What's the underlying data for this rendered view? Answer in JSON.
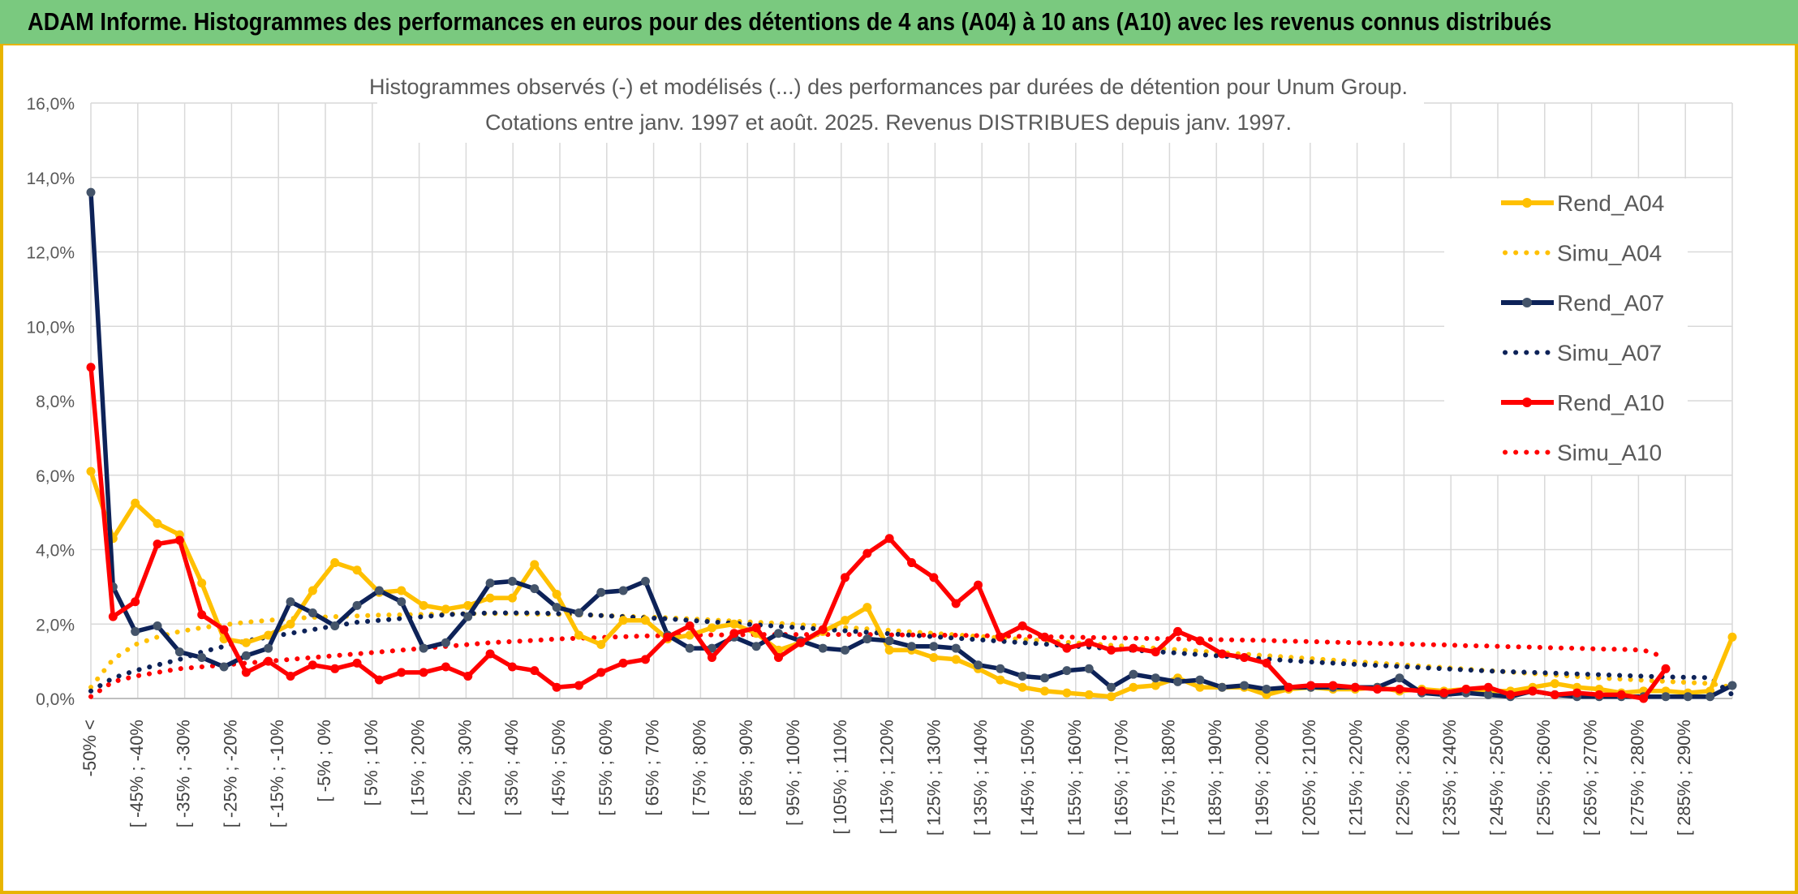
{
  "banner": {
    "title": "ADAM Informe. Histogrammes des performances en euros pour des détentions de 4 ans (A04) à 10 ans (A10) avec les revenus connus distribués"
  },
  "colors": {
    "banner_bg": "#7ac97f",
    "frame": "#e8b400",
    "A04": "#ffc000",
    "A07": "#0d2258",
    "A07_marker": "#44546a",
    "A10": "#ff0000",
    "grid": "#d9d9d9"
  },
  "chart_data": {
    "type": "line",
    "title_lines": [
      "Histogrammes observés (-) et modélisés (...) des performances par durées de détention pour Unum Group.",
      "Cotations entre janv. 1997 et août. 2025. Revenus DISTRIBUES depuis janv. 1997."
    ],
    "xlabel": "",
    "ylabel": "",
    "ylim": [
      0,
      16
    ],
    "y_ticks": [
      "0,0%",
      "2,0%",
      "4,0%",
      "6,0%",
      "8,0%",
      "10,0%",
      "12,0%",
      "14,0%",
      "16,0%"
    ],
    "grid": true,
    "legend_position": "right",
    "x_tick_labels": [
      "-50% <",
      "[ -45% ; -40%",
      "[ -35% ; -30%",
      "[ -25% ; -20%",
      "[ -15% ; -10%",
      "[ -5% ; 0%",
      "[ 5% ; 10%",
      "[ 15% ; 20%",
      "[ 25% ; 30%",
      "[ 35% ; 40%",
      "[ 45% ; 50%",
      "[ 55% ; 60%",
      "[ 65% ; 70%",
      "[ 75% ; 80%",
      "[ 85% ; 90%",
      "[ 95% ; 100%",
      "[ 105% ; 110%",
      "[ 115% ; 120%",
      "[ 125% ; 130%",
      "[ 135% ; 140%",
      "[ 145% ; 150%",
      "[ 155% ; 160%",
      "[ 165% ; 170%",
      "[ 175% ; 180%",
      "[ 185% ; 190%",
      "[ 195% ; 200%",
      "[ 205% ; 210%",
      "[ 215% ; 220%",
      "[ 225% ; 230%",
      "[ 235% ; 240%",
      "[ 245% ; 250%",
      "[ 255% ; 260%",
      "[ 265% ; 270%",
      "[ 275% ; 280%",
      "[ 285% ; 290%"
    ],
    "series": [
      {
        "name": "Rend_A04",
        "style": "solid",
        "color": "#ffc000",
        "values": [
          6.1,
          4.3,
          5.25,
          4.7,
          4.4,
          3.1,
          1.6,
          1.5,
          1.7,
          2.0,
          2.9,
          3.65,
          3.45,
          2.85,
          2.9,
          2.5,
          2.4,
          2.5,
          2.7,
          2.7,
          3.6,
          2.8,
          1.7,
          1.45,
          2.1,
          2.1,
          1.6,
          1.7,
          1.9,
          2.0,
          1.75,
          1.3,
          1.5,
          1.8,
          2.1,
          2.45,
          1.3,
          1.3,
          1.1,
          1.05,
          0.8,
          0.5,
          0.3,
          0.2,
          0.15,
          0.1,
          0.05,
          0.3,
          0.35,
          0.55,
          0.3,
          0.3,
          0.3,
          0.1,
          0.25,
          0.3,
          0.25,
          0.25,
          0.3,
          0.2,
          0.25,
          0.2,
          0.25,
          0.2,
          0.2,
          0.3,
          0.4,
          0.3,
          0.25,
          0.15,
          0.2,
          0.2,
          0.15,
          0.2,
          1.65
        ]
      },
      {
        "name": "Simu_A04",
        "style": "dotted",
        "color": "#ffc000",
        "values": [
          0.3,
          1.05,
          1.45,
          1.65,
          1.8,
          1.9,
          1.98,
          2.05,
          2.1,
          2.15,
          2.18,
          2.2,
          2.22,
          2.24,
          2.25,
          2.26,
          2.27,
          2.28,
          2.28,
          2.28,
          2.27,
          2.26,
          2.25,
          2.23,
          2.21,
          2.19,
          2.17,
          2.14,
          2.11,
          2.08,
          2.05,
          2.02,
          1.98,
          1.95,
          1.91,
          1.87,
          1.83,
          1.79,
          1.75,
          1.71,
          1.67,
          1.63,
          1.59,
          1.55,
          1.51,
          1.47,
          1.43,
          1.39,
          1.35,
          1.31,
          1.27,
          1.23,
          1.19,
          1.15,
          1.11,
          1.07,
          1.03,
          0.99,
          0.95,
          0.91,
          0.87,
          0.83,
          0.79,
          0.75,
          0.71,
          0.67,
          0.63,
          0.59,
          0.55,
          0.52,
          0.49,
          0.46,
          0.43,
          0.4,
          0.3
        ]
      },
      {
        "name": "Rend_A07",
        "style": "solid",
        "color": "#0d2258",
        "values": [
          13.6,
          3.0,
          1.8,
          1.95,
          1.25,
          1.1,
          0.85,
          1.15,
          1.35,
          2.6,
          2.3,
          1.95,
          2.5,
          2.9,
          2.6,
          1.35,
          1.5,
          2.2,
          3.1,
          3.15,
          2.95,
          2.45,
          2.3,
          2.85,
          2.9,
          3.15,
          1.7,
          1.35,
          1.35,
          1.65,
          1.4,
          1.75,
          1.55,
          1.35,
          1.3,
          1.6,
          1.55,
          1.4,
          1.4,
          1.35,
          0.9,
          0.8,
          0.6,
          0.55,
          0.75,
          0.8,
          0.3,
          0.65,
          0.55,
          0.45,
          0.5,
          0.3,
          0.35,
          0.25,
          0.3,
          0.3,
          0.3,
          0.3,
          0.3,
          0.55,
          0.15,
          0.1,
          0.15,
          0.1,
          0.05,
          0.2,
          0.1,
          0.05,
          0.05,
          0.05,
          0.05,
          0.05,
          0.05,
          0.05,
          0.35
        ]
      },
      {
        "name": "Simu_A07",
        "style": "dotted",
        "color": "#0d2258",
        "values": [
          0.2,
          0.55,
          0.75,
          0.9,
          1.05,
          1.25,
          1.4,
          1.55,
          1.65,
          1.75,
          1.85,
          1.95,
          2.05,
          2.1,
          2.15,
          2.2,
          2.25,
          2.28,
          2.3,
          2.3,
          2.3,
          2.28,
          2.26,
          2.23,
          2.2,
          2.17,
          2.14,
          2.1,
          2.06,
          2.02,
          1.98,
          1.94,
          1.9,
          1.86,
          1.82,
          1.78,
          1.74,
          1.7,
          1.66,
          1.62,
          1.58,
          1.54,
          1.5,
          1.46,
          1.42,
          1.38,
          1.34,
          1.3,
          1.26,
          1.22,
          1.18,
          1.14,
          1.1,
          1.06,
          1.02,
          0.98,
          0.95,
          0.92,
          0.89,
          0.86,
          0.83,
          0.8,
          0.77,
          0.74,
          0.72,
          0.7,
          0.68,
          0.66,
          0.64,
          0.62,
          0.6,
          0.58,
          0.57,
          0.56,
          0.1
        ]
      },
      {
        "name": "Rend_A10",
        "style": "solid",
        "color": "#ff0000",
        "values": [
          8.9,
          2.2,
          2.6,
          4.15,
          4.25,
          2.25,
          1.85,
          0.7,
          1.0,
          0.6,
          0.9,
          0.8,
          0.95,
          0.5,
          0.7,
          0.7,
          0.85,
          0.6,
          1.2,
          0.85,
          0.75,
          0.3,
          0.35,
          0.7,
          0.95,
          1.05,
          1.65,
          1.95,
          1.1,
          1.75,
          1.9,
          1.1,
          1.5,
          1.85,
          3.25,
          3.9,
          4.3,
          3.65,
          3.25,
          2.55,
          3.05,
          1.65,
          1.95,
          1.65,
          1.35,
          1.5,
          1.3,
          1.35,
          1.25,
          1.8,
          1.55,
          1.2,
          1.1,
          0.95,
          0.3,
          0.35,
          0.35,
          0.3,
          0.25,
          0.25,
          0.2,
          0.15,
          0.25,
          0.3,
          0.1,
          0.2,
          0.1,
          0.15,
          0.1,
          0.1,
          0.0,
          0.8
        ]
      },
      {
        "name": "Simu_A10",
        "style": "dotted",
        "color": "#ff0000",
        "values": [
          0.05,
          0.45,
          0.6,
          0.7,
          0.8,
          0.85,
          0.9,
          0.95,
          1.0,
          1.05,
          1.1,
          1.15,
          1.2,
          1.25,
          1.3,
          1.35,
          1.4,
          1.45,
          1.5,
          1.53,
          1.56,
          1.6,
          1.62,
          1.64,
          1.66,
          1.68,
          1.69,
          1.7,
          1.71,
          1.71,
          1.72,
          1.72,
          1.72,
          1.72,
          1.72,
          1.72,
          1.71,
          1.71,
          1.7,
          1.7,
          1.69,
          1.68,
          1.67,
          1.66,
          1.65,
          1.64,
          1.63,
          1.62,
          1.61,
          1.6,
          1.59,
          1.58,
          1.57,
          1.56,
          1.54,
          1.53,
          1.51,
          1.5,
          1.48,
          1.47,
          1.45,
          1.44,
          1.42,
          1.41,
          1.39,
          1.38,
          1.36,
          1.35,
          1.33,
          1.32,
          1.3,
          1.1
        ]
      }
    ]
  }
}
